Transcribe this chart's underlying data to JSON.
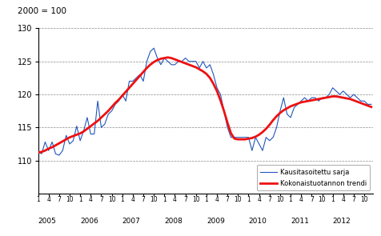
{
  "title": "2000 = 100",
  "ylim": [
    105,
    130
  ],
  "yticks": [
    110,
    115,
    120,
    125,
    130
  ],
  "background_color": "#ffffff",
  "grid_color": "#888888",
  "legend_labels": [
    "Kokonaistuotannon trendi",
    "Kausitasoitettu sarja"
  ],
  "trend_color": "#ee1111",
  "seasonal_color": "#2255bb",
  "trend": [
    111.2,
    111.3,
    111.5,
    111.8,
    112.0,
    112.3,
    112.6,
    112.9,
    113.2,
    113.5,
    113.7,
    113.9,
    114.1,
    114.4,
    114.8,
    115.2,
    115.6,
    116.0,
    116.5,
    117.0,
    117.5,
    118.1,
    118.7,
    119.2,
    119.8,
    120.4,
    121.0,
    121.6,
    122.2,
    122.8,
    123.4,
    124.0,
    124.5,
    124.9,
    125.2,
    125.4,
    125.5,
    125.6,
    125.5,
    125.3,
    125.1,
    124.9,
    124.7,
    124.5,
    124.3,
    124.1,
    123.8,
    123.5,
    123.1,
    122.5,
    121.6,
    120.5,
    119.1,
    117.5,
    115.7,
    114.1,
    113.3,
    113.2,
    113.2,
    113.2,
    113.3,
    113.4,
    113.6,
    113.9,
    114.3,
    114.8,
    115.4,
    116.1,
    116.7,
    117.2,
    117.6,
    117.9,
    118.2,
    118.4,
    118.6,
    118.8,
    118.9,
    119.0,
    119.1,
    119.2,
    119.3,
    119.4,
    119.5,
    119.6,
    119.7,
    119.7,
    119.6,
    119.5,
    119.4,
    119.3,
    119.1,
    118.9,
    118.7,
    118.5,
    118.3,
    118.1
  ],
  "seasonal": [
    111.4,
    111.0,
    112.8,
    111.5,
    112.8,
    111.0,
    110.8,
    111.5,
    113.8,
    112.5,
    113.0,
    115.2,
    113.0,
    114.5,
    116.5,
    114.0,
    114.0,
    119.0,
    115.0,
    115.5,
    117.0,
    117.5,
    118.5,
    119.0,
    120.0,
    119.0,
    122.0,
    122.0,
    122.5,
    123.0,
    122.0,
    125.0,
    126.5,
    127.0,
    125.5,
    124.5,
    125.5,
    125.0,
    124.5,
    124.5,
    125.0,
    125.0,
    125.5,
    125.0,
    125.0,
    125.0,
    124.0,
    125.0,
    124.0,
    124.5,
    123.0,
    121.0,
    120.0,
    117.5,
    115.0,
    113.5,
    113.5,
    113.5,
    113.5,
    113.5,
    113.5,
    111.5,
    113.5,
    112.5,
    111.5,
    113.5,
    113.0,
    113.5,
    115.0,
    117.5,
    119.5,
    117.0,
    116.5,
    118.0,
    118.5,
    119.0,
    119.5,
    119.0,
    119.5,
    119.5,
    119.0,
    119.5,
    119.5,
    120.0,
    121.0,
    120.5,
    120.0,
    120.5,
    120.0,
    119.5,
    120.0,
    119.5,
    119.0,
    119.0,
    118.5,
    118.5
  ]
}
